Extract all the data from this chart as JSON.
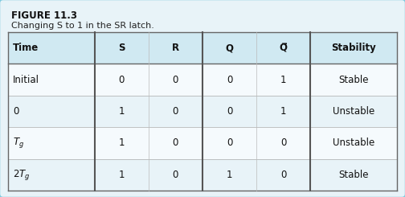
{
  "figure_label": "FIGURE 11.3",
  "figure_caption": "Changing S to 1 in the SR latch.",
  "col_headers": [
    "Time",
    "S",
    "R",
    "Q",
    "Q̅",
    "Stability"
  ],
  "rows": [
    [
      "Initial",
      "0",
      "0",
      "0",
      "1",
      "Stable"
    ],
    [
      "0",
      "1",
      "0",
      "0",
      "1",
      "Unstable"
    ],
    [
      "Tg",
      "1",
      "0",
      "0",
      "0",
      "Unstable"
    ],
    [
      "2Tg",
      "1",
      "0",
      "1",
      "0",
      "Stable"
    ]
  ],
  "time_col_italic": [
    false,
    false,
    true,
    true
  ],
  "outer_bg": "#e8f3f8",
  "header_bg": "#d0e9f2",
  "row_bg_light": "#e8f3f8",
  "row_bg_white": "#f5fafd",
  "thick_col_dividers": [
    1,
    3,
    5
  ],
  "col_widths_rel": [
    1.6,
    1.0,
    1.0,
    1.0,
    1.0,
    1.6
  ],
  "header_fontsize": 8.5,
  "cell_fontsize": 8.5,
  "title_fontsize": 8.5,
  "caption_fontsize": 8.0
}
